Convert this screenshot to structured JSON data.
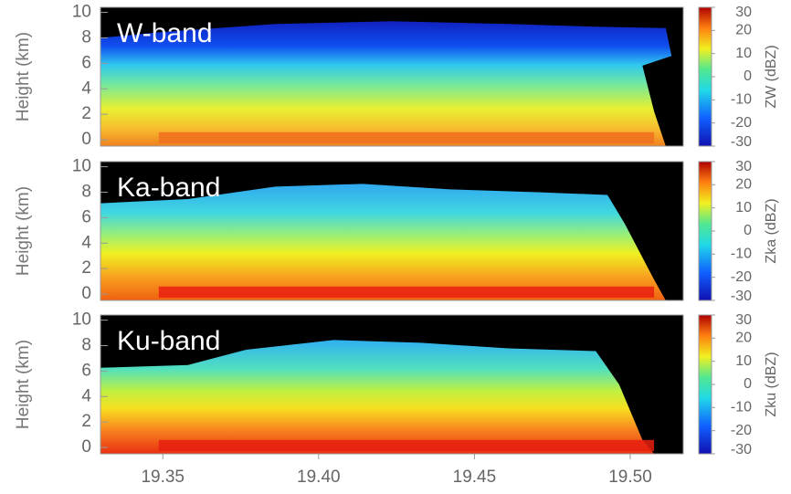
{
  "chart_data": [
    {
      "type": "heatmap",
      "title": "W-band",
      "y_label": "Height (km)",
      "xlim": [
        19.33,
        19.517
      ],
      "ylim": [
        -0.5,
        10.4
      ],
      "yticks": [
        0,
        2,
        4,
        6,
        8,
        10
      ],
      "colorbar": {
        "label": "ZW (dBZ)",
        "lim": [
          -30,
          30
        ],
        "ticks": [
          30,
          20,
          10,
          0,
          -10,
          -20,
          -30
        ]
      }
    },
    {
      "type": "heatmap",
      "title": "Ka-band",
      "y_label": "Height (km)",
      "xlim": [
        19.33,
        19.517
      ],
      "ylim": [
        -0.5,
        10.4
      ],
      "yticks": [
        0,
        2,
        4,
        6,
        8,
        10
      ],
      "colorbar": {
        "label": "Zka (dBZ)",
        "lim": [
          -30,
          30
        ],
        "ticks": [
          30,
          20,
          10,
          0,
          -10,
          -20,
          -30
        ]
      }
    },
    {
      "type": "heatmap",
      "title": "Ku-band",
      "y_label": "Height (km)",
      "xlim": [
        19.33,
        19.517
      ],
      "ylim": [
        -0.5,
        10.4
      ],
      "yticks": [
        0,
        2,
        4,
        6,
        8,
        10
      ],
      "xticks": [
        19.35,
        {
          "value": 19.4,
          "label": "19.40"
        },
        19.45,
        {
          "value": 19.5,
          "label": "19.50"
        }
      ],
      "colorbar": {
        "label": "Zku (dBZ)",
        "lim": [
          -30,
          30
        ],
        "ticks": [
          30,
          20,
          10,
          0,
          -10,
          -20,
          -30
        ]
      }
    }
  ]
}
